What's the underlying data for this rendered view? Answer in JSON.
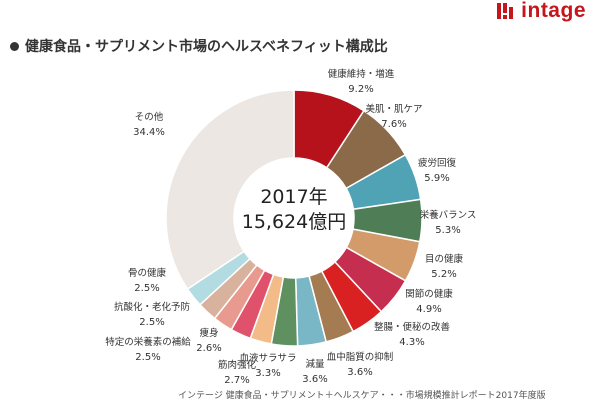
{
  "brand": {
    "name": "intage",
    "color": "#c4161c"
  },
  "title": "健康食品・サプリメント市場のヘルスベネフィット構成比",
  "center": {
    "line1": "2017年",
    "line2": "15,624億円"
  },
  "footnote": "インテージ 健康食品・サプリメント＋ヘルスケア・・・市場規模推計レポート2017年度版",
  "chart_data": {
    "type": "pie",
    "style": "donut",
    "categories": [
      "健康維持・増進",
      "美肌・肌ケア",
      "疲労回復",
      "栄養バランス",
      "目の健康",
      "関節の健康",
      "整腸・便秘の改善",
      "血中脂質の抑制",
      "減量",
      "血液サラサラ",
      "筋肉強化",
      "痩身",
      "特定の栄養素の補給",
      "抗酸化・老化予防",
      "骨の健康",
      "その他"
    ],
    "values": [
      9.2,
      7.6,
      5.9,
      5.3,
      5.2,
      4.9,
      4.3,
      3.6,
      3.6,
      3.3,
      2.7,
      2.6,
      2.5,
      2.5,
      2.5,
      34.4
    ],
    "value_labels": [
      "9.2%",
      "7.6%",
      "5.9%",
      "5.3%",
      "5.2%",
      "4.9%",
      "4.3%",
      "3.6%",
      "3.6%",
      "3.3%",
      "2.7%",
      "2.6%",
      "2.5%",
      "2.5%",
      "2.5%",
      "34.4%"
    ],
    "colors": [
      "#b5121b",
      "#8b6a4a",
      "#4fa3b5",
      "#4e7d56",
      "#d39a6a",
      "#c62e4f",
      "#d92121",
      "#a57b52",
      "#7ab7c6",
      "#5f9160",
      "#f2bb88",
      "#e0526c",
      "#e79a8d",
      "#d9b29e",
      "#b2dbe2",
      "#ece7e2"
    ],
    "unit": "%"
  }
}
